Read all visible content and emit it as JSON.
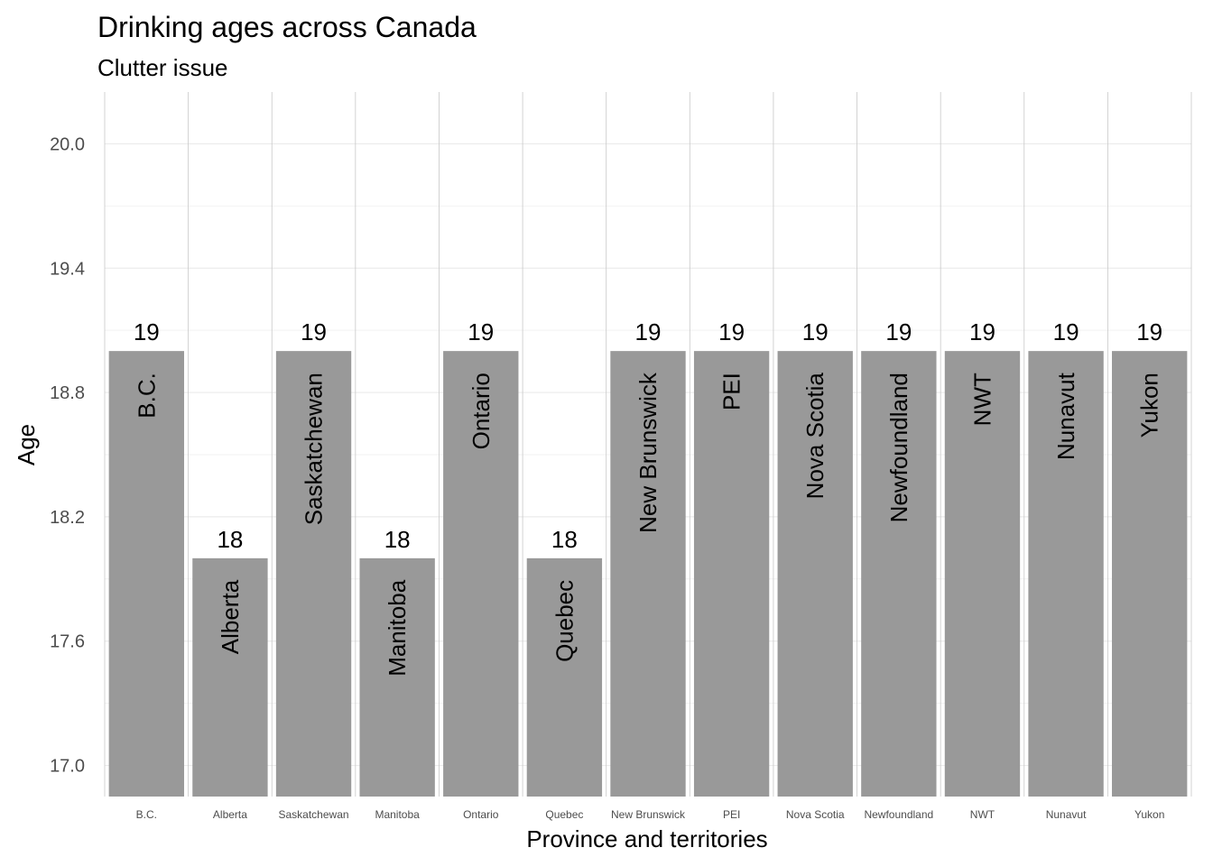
{
  "chart_data": {
    "type": "bar",
    "title": "Drinking ages across Canada",
    "subtitle": "Clutter issue",
    "xlabel": "Province and territories",
    "ylabel": "Age",
    "categories": [
      "B.C.",
      "Alberta",
      "Saskatchewan",
      "Manitoba",
      "Ontario",
      "Quebec",
      "New Brunswick",
      "PEI",
      "Nova Scotia",
      "Newfoundland",
      "NWT",
      "Nunavut",
      "Yukon"
    ],
    "values": [
      19,
      18,
      19,
      18,
      19,
      18,
      19,
      19,
      19,
      19,
      19,
      19,
      19
    ],
    "value_labels": [
      "19",
      "18",
      "19",
      "18",
      "19",
      "18",
      "19",
      "19",
      "19",
      "19",
      "19",
      "19",
      "19"
    ],
    "yticks": [
      "17.0",
      "17.6",
      "18.2",
      "18.8",
      "19.4",
      "20.0"
    ],
    "ylim": [
      16.85,
      20.25
    ],
    "grid": true,
    "legend": "none",
    "colors": {
      "bar": "#999999",
      "grid_major": "#ebebeb",
      "grid_minor": "#f2f2f2",
      "separator": "#c8c8c8",
      "tick_text": "#4d4d4d"
    }
  }
}
